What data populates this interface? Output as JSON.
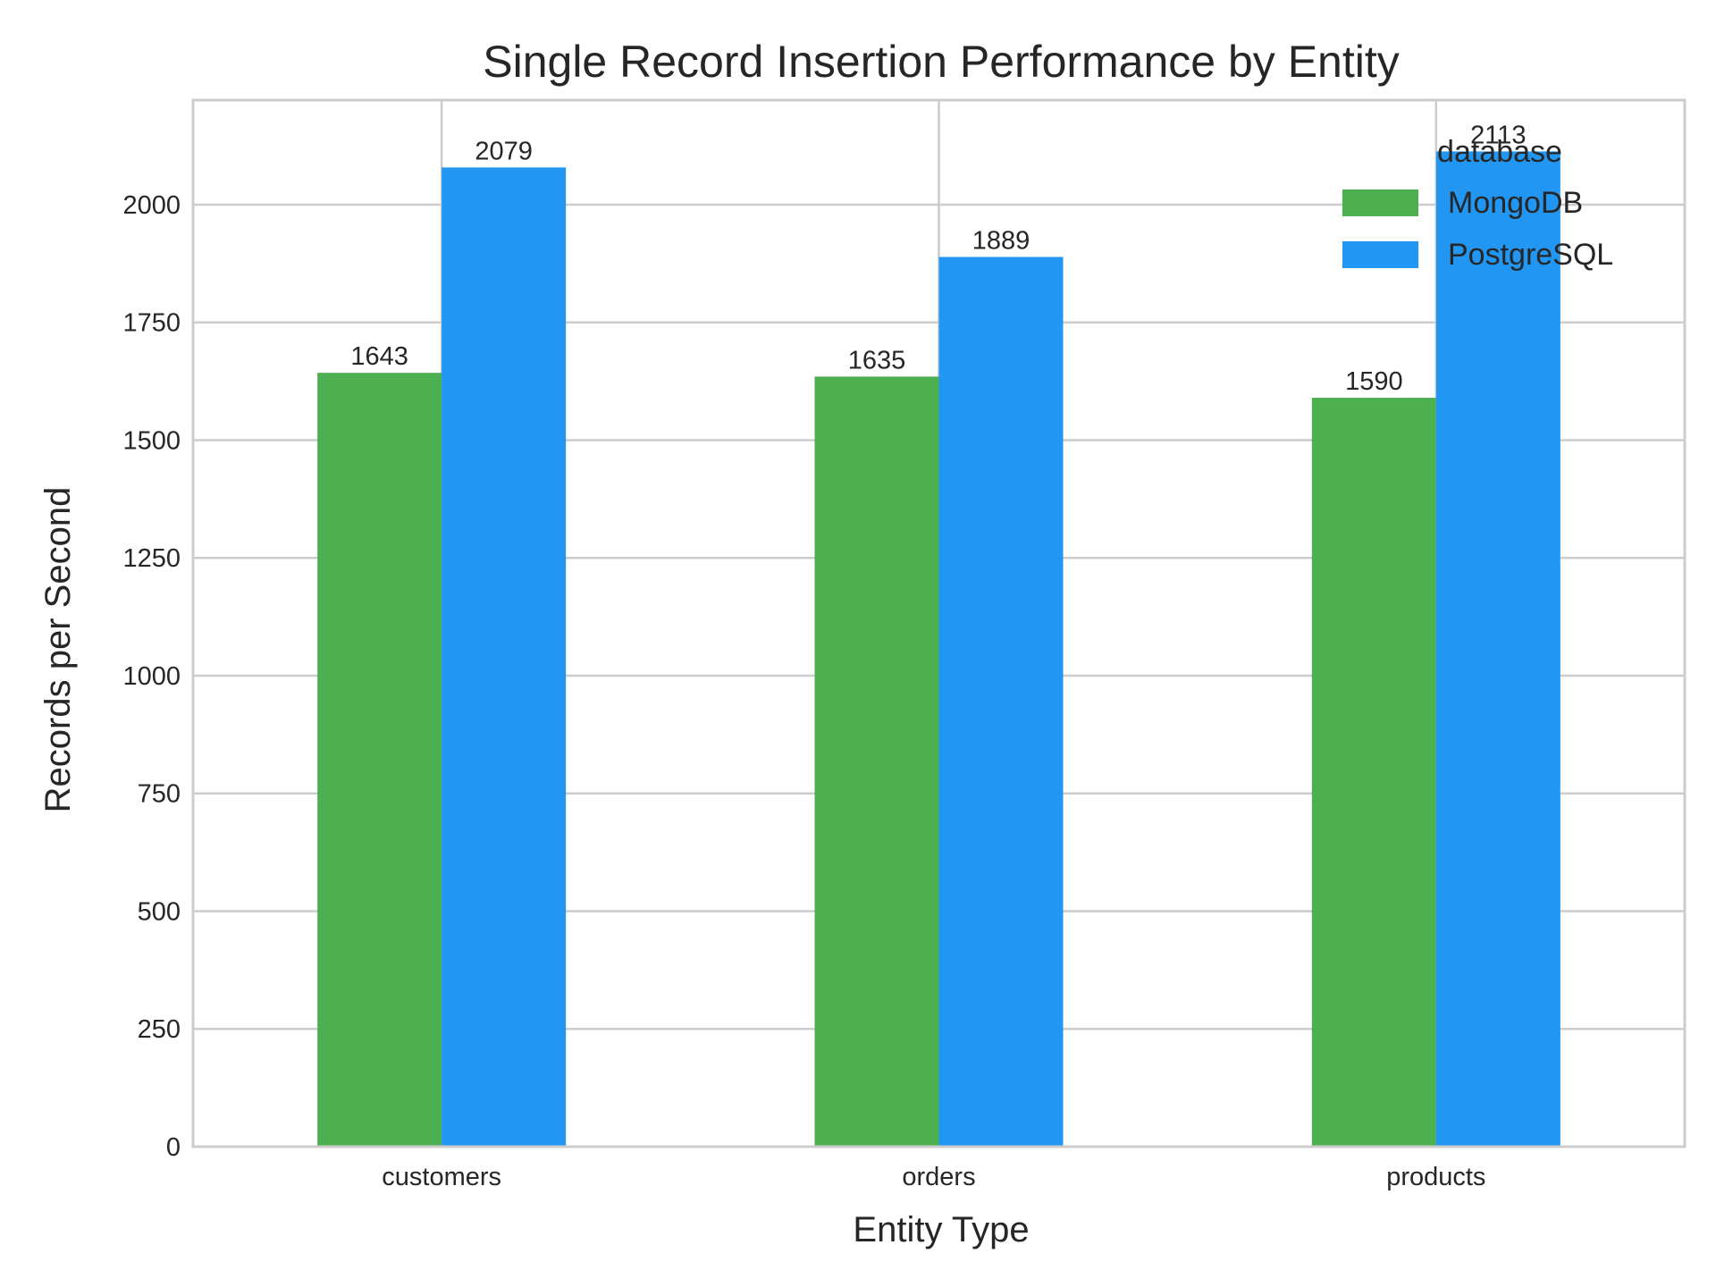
{
  "chart_data": {
    "type": "bar",
    "title": "Single Record Insertion Performance by Entity",
    "xlabel": "Entity Type",
    "ylabel": "Records per Second",
    "categories": [
      "customers",
      "orders",
      "products"
    ],
    "series": [
      {
        "name": "MongoDB",
        "color": "#4caf50",
        "values": [
          1643,
          1635,
          1590
        ]
      },
      {
        "name": "PostgreSQL",
        "color": "#2196f3",
        "values": [
          2079,
          1889,
          2113
        ]
      }
    ],
    "ylim": [
      0,
      2222
    ],
    "yticks": [
      0,
      250,
      500,
      750,
      1000,
      1250,
      1500,
      1750,
      2000
    ],
    "grid": true,
    "legend": {
      "title": "database",
      "placement": "top-right"
    }
  }
}
